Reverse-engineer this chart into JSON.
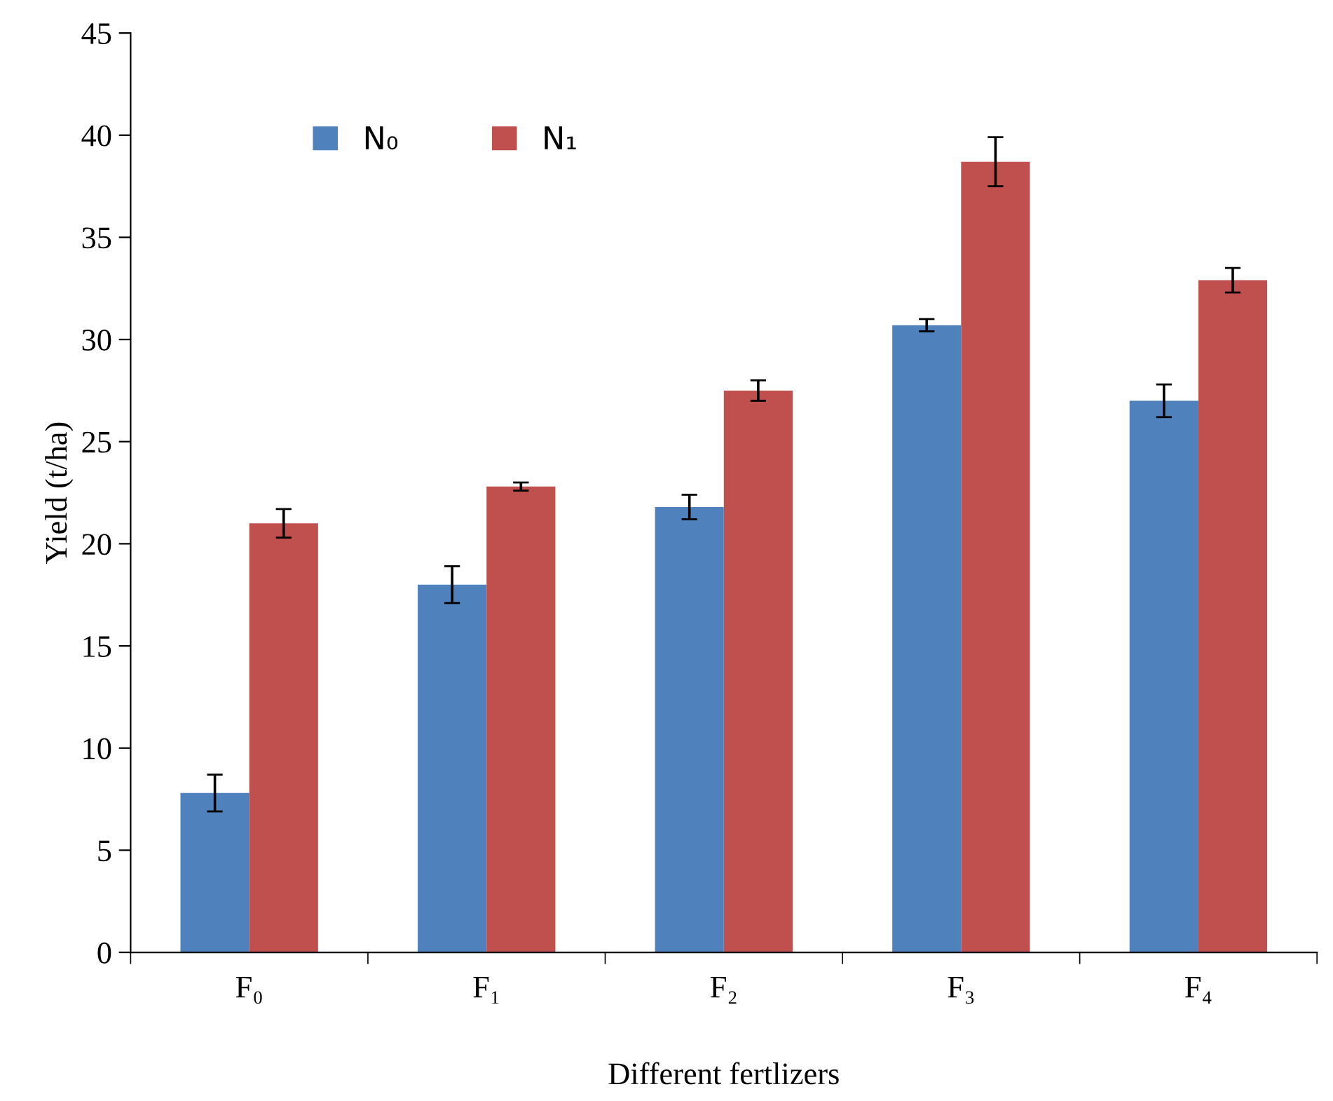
{
  "chart_data": {
    "type": "bar",
    "xlabel": "Different fertlizers",
    "ylabel": "Yield (t/ha)",
    "categories": [
      "F₀",
      "F₁",
      "F₂",
      "F₃",
      "F₄"
    ],
    "series": [
      {
        "name": "N₀",
        "color": "#4f81bd",
        "values": [
          7.8,
          18.0,
          21.8,
          30.7,
          27.0
        ],
        "errors": [
          0.9,
          0.9,
          0.6,
          0.3,
          0.8
        ]
      },
      {
        "name": "N₁",
        "color": "#c0504d",
        "values": [
          21.0,
          22.8,
          27.5,
          38.7,
          32.9
        ],
        "errors": [
          0.7,
          0.2,
          0.5,
          1.2,
          0.6
        ]
      }
    ],
    "ylim": [
      0,
      45
    ],
    "yticks": [
      0,
      5,
      10,
      15,
      20,
      25,
      30,
      35,
      40,
      45
    ],
    "grid": false,
    "legend": "top left"
  }
}
